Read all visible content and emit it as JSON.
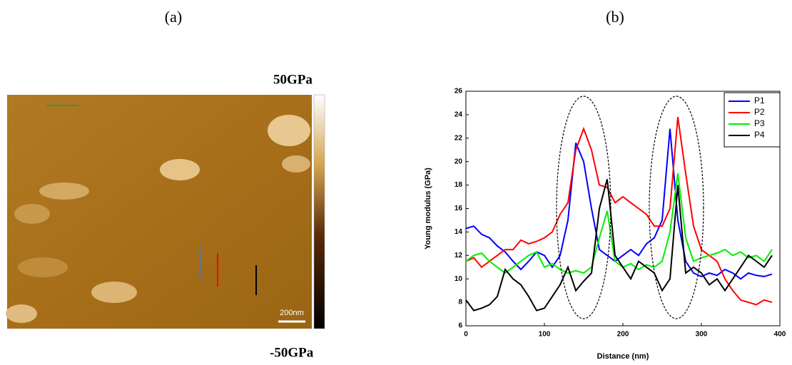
{
  "panels": {
    "a": "(a)",
    "b": "(b)"
  },
  "image": {
    "colorbar_max": "50GPa",
    "colorbar_min": "-50GPa",
    "scale_bar": "200nm"
  },
  "chart_data": {
    "type": "line",
    "xlabel": "Distance (nm)",
    "ylabel": "Young modulus (GPa)",
    "x": [
      0,
      10,
      20,
      30,
      40,
      50,
      60,
      70,
      80,
      90,
      100,
      110,
      120,
      130,
      140,
      150,
      160,
      170,
      180,
      190,
      200,
      210,
      220,
      230,
      240,
      250,
      260,
      270,
      280,
      290,
      300,
      310,
      320,
      330,
      340,
      350,
      360,
      370,
      380,
      390
    ],
    "xlim": [
      0,
      400
    ],
    "xticks": [
      0,
      100,
      200,
      300,
      400
    ],
    "ylim": [
      6,
      26
    ],
    "yticks": [
      6,
      8,
      10,
      12,
      14,
      16,
      18,
      20,
      22,
      24,
      26
    ],
    "legend": "upper right",
    "series": [
      {
        "name": "P1",
        "color": "#0000ff",
        "values": [
          14.3,
          14.5,
          13.8,
          13.5,
          12.8,
          12.3,
          11.5,
          10.8,
          11.5,
          12.3,
          12,
          11,
          12,
          15,
          21.6,
          20,
          16,
          12.5,
          12,
          11.5,
          12,
          12.5,
          12,
          13,
          13.5,
          15,
          22.8,
          15,
          11.5,
          10.5,
          10.2,
          10.5,
          10.3,
          10.8,
          10.5,
          10,
          10.5,
          10.3,
          10.2,
          10.4
        ]
      },
      {
        "name": "P2",
        "color": "#ff0000",
        "values": [
          11.5,
          11.8,
          11,
          11.5,
          12,
          12.5,
          12.5,
          13.3,
          13,
          13.2,
          13.5,
          14,
          15.5,
          16.5,
          21,
          22.8,
          21,
          18,
          17.8,
          16.5,
          17,
          16.5,
          16,
          15.5,
          14.5,
          14.5,
          16,
          23.8,
          19,
          14.5,
          12.5,
          12,
          11.5,
          10,
          9,
          8.2,
          8,
          7.8,
          8.2,
          8
        ]
      },
      {
        "name": "P3",
        "color": "#00ee00",
        "values": [
          11.5,
          12,
          12.2,
          11.5,
          11,
          10.5,
          11,
          11.5,
          12,
          12.3,
          11,
          11.3,
          10.8,
          10.5,
          10.7,
          10.5,
          11,
          13.5,
          15.8,
          11.5,
          11,
          11.3,
          10.8,
          11.2,
          11,
          11.5,
          14,
          19,
          13.5,
          11.5,
          11.8,
          12,
          12.2,
          12.5,
          12,
          12.3,
          11.8,
          12,
          11.5,
          12.5
        ]
      },
      {
        "name": "P4",
        "color": "#000000",
        "values": [
          8.2,
          7.3,
          7.5,
          7.8,
          8.5,
          10.8,
          10,
          9.5,
          8.5,
          7.3,
          7.5,
          8.5,
          9.5,
          11,
          9,
          9.8,
          10.5,
          16,
          18.5,
          12,
          11,
          10,
          11.5,
          11,
          10.5,
          9,
          10,
          18,
          10.5,
          11,
          10.5,
          9.5,
          10,
          9,
          10,
          11,
          12,
          11.5,
          11,
          12
        ]
      }
    ]
  }
}
